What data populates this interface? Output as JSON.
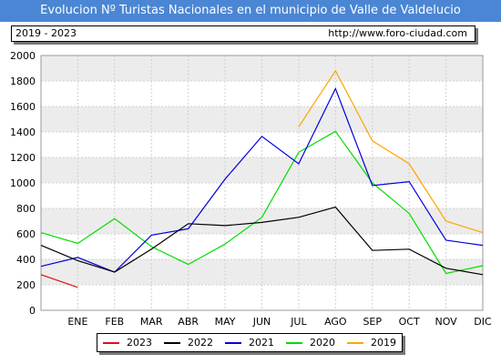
{
  "header": {
    "title": "Evolucion Nº Turistas Nacionales en el municipio de Valle de Valdelucio",
    "period": "2019 - 2023",
    "url": "http://www.foro-ciudad.com"
  },
  "colors": {
    "title_bg": "#4a86d4",
    "band": "#ececec"
  },
  "chart_data": {
    "type": "line",
    "categories": [
      "ENE",
      "FEB",
      "MAR",
      "ABR",
      "MAY",
      "JUN",
      "JUL",
      "AGO",
      "SEP",
      "OCT",
      "NOV",
      "DIC"
    ],
    "ylim": [
      0,
      2000
    ],
    "yticks": [
      0,
      200,
      400,
      600,
      800,
      1000,
      1200,
      1400,
      1600,
      1800,
      2000
    ],
    "grid": true,
    "legend_position": "bottom",
    "series": [
      {
        "name": "2023",
        "color": "#e01010",
        "values": [
          180,
          null,
          null,
          null,
          null,
          null,
          null,
          null,
          null,
          null,
          null,
          null
        ],
        "start": 280
      },
      {
        "name": "2022",
        "color": "#000000",
        "values": [
          390,
          300,
          480,
          680,
          665,
          690,
          730,
          810,
          470,
          480,
          330,
          280
        ],
        "start": 510
      },
      {
        "name": "2021",
        "color": "#0000dd",
        "values": [
          415,
          300,
          590,
          640,
          1030,
          1365,
          1150,
          1740,
          980,
          1010,
          550,
          510
        ],
        "start": 345
      },
      {
        "name": "2020",
        "color": "#00dd00",
        "values": [
          525,
          720,
          500,
          360,
          520,
          730,
          1240,
          1405,
          1000,
          760,
          290,
          350
        ],
        "start": 610
      },
      {
        "name": "2019",
        "color": "#ffa500",
        "values": [
          null,
          null,
          null,
          null,
          null,
          null,
          1440,
          1880,
          1330,
          1150,
          700,
          610
        ],
        "start": null
      }
    ]
  }
}
